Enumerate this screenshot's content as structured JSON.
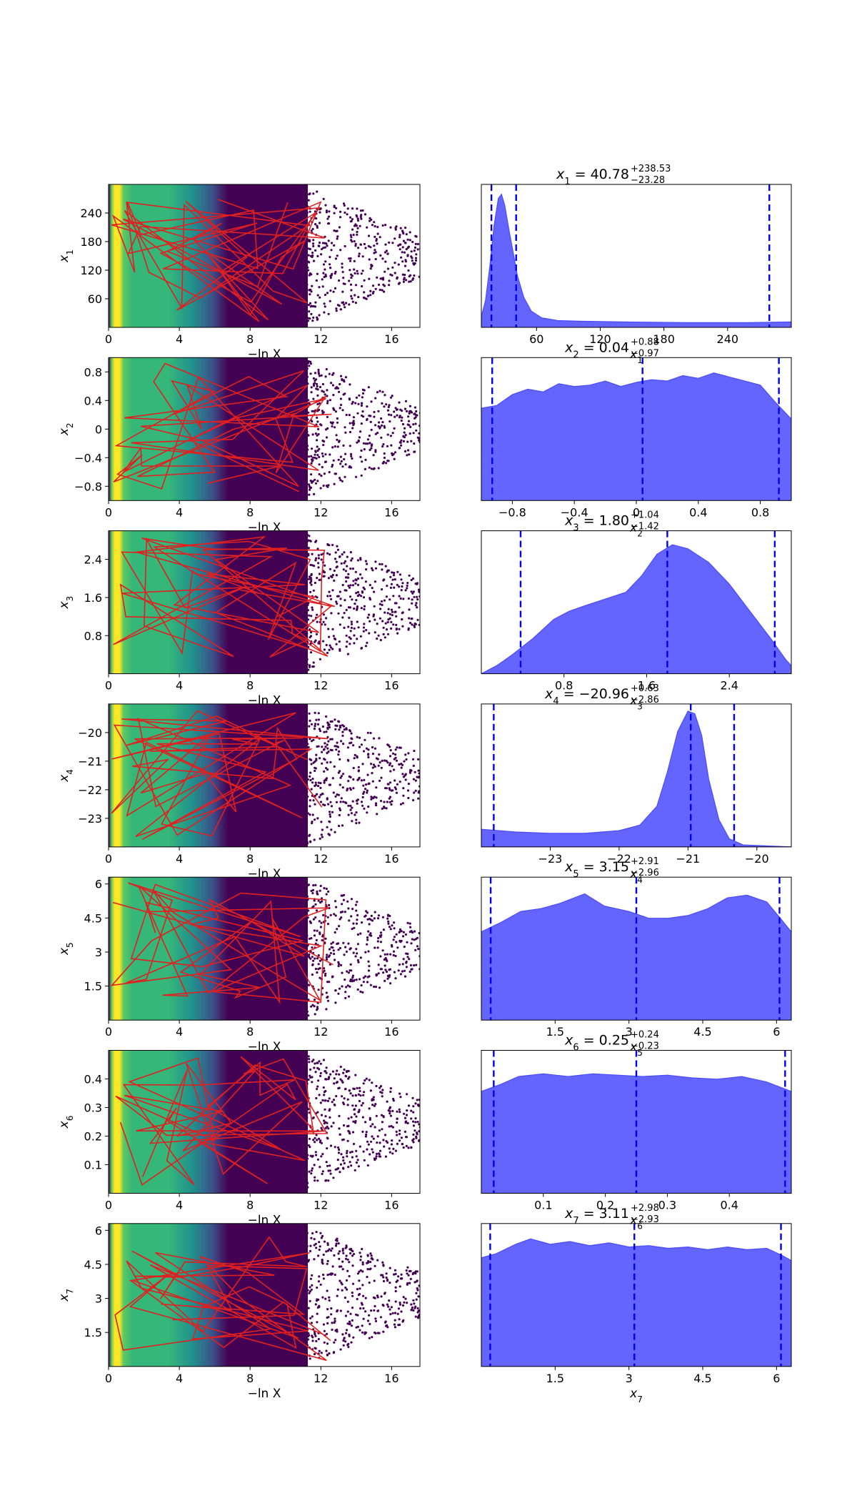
{
  "colors": {
    "histogram_fill": "#6464ff",
    "histogram_edge": "#4b4bff",
    "quantile_line": "#0000ee",
    "trace_line": "#e02020",
    "viridis": [
      "#440154",
      "#3b528b",
      "#21918c",
      "#35b779",
      "#5ec962",
      "#fde725"
    ]
  },
  "chart_data": {
    "type": "scatter",
    "layout": "7 rows x 2 columns",
    "trace_column": {
      "xlabel": "−ln X",
      "x_ticks": [
        "0",
        "4",
        "8",
        "12",
        "16"
      ],
      "xlim": [
        0,
        17.6
      ]
    },
    "rows": [
      {
        "param": "x",
        "index": "1",
        "ylim": [
          0,
          300
        ],
        "y_ticks": [
          60,
          120,
          180,
          240
        ],
        "title": {
          "lhs": "x",
          "sub": "1",
          "median": " = 40.78",
          "upper": "+238.53",
          "lower": "−23.28"
        },
        "hist_ticks": [
          60,
          120,
          180,
          240
        ],
        "hist_xlim": [
          8,
          300
        ],
        "quantiles": [
          17.5,
          40.78,
          279.31
        ],
        "density": [
          [
            8,
            0.08
          ],
          [
            12,
            0.2
          ],
          [
            16,
            0.45
          ],
          [
            20,
            0.75
          ],
          [
            24,
            0.95
          ],
          [
            27,
            0.98
          ],
          [
            30,
            0.9
          ],
          [
            34,
            0.72
          ],
          [
            38,
            0.55
          ],
          [
            42,
            0.38
          ],
          [
            48,
            0.22
          ],
          [
            55,
            0.12
          ],
          [
            65,
            0.07
          ],
          [
            80,
            0.05
          ],
          [
            100,
            0.045
          ],
          [
            140,
            0.04
          ],
          [
            200,
            0.035
          ],
          [
            260,
            0.035
          ],
          [
            300,
            0.04
          ]
        ]
      },
      {
        "param": "x",
        "index": "2",
        "ylim": [
          -1,
          1
        ],
        "y_ticks": [
          -0.8,
          -0.4,
          0.0,
          0.4,
          0.8
        ],
        "title": {
          "lhs": "x",
          "sub": "2",
          "median": " = 0.04",
          "upper": "+0.88",
          "lower": "−0.97"
        },
        "hist_ticks": [
          -0.8,
          -0.4,
          0.0,
          0.4,
          0.8
        ],
        "hist_xlim": [
          -1,
          1
        ],
        "quantiles": [
          -0.93,
          0.04,
          0.92
        ],
        "density": [
          [
            -1,
            0.68
          ],
          [
            -0.9,
            0.7
          ],
          [
            -0.8,
            0.78
          ],
          [
            -0.7,
            0.82
          ],
          [
            -0.6,
            0.8
          ],
          [
            -0.5,
            0.86
          ],
          [
            -0.4,
            0.84
          ],
          [
            -0.3,
            0.85
          ],
          [
            -0.2,
            0.88
          ],
          [
            -0.1,
            0.84
          ],
          [
            0.0,
            0.87
          ],
          [
            0.1,
            0.89
          ],
          [
            0.2,
            0.88
          ],
          [
            0.3,
            0.92
          ],
          [
            0.4,
            0.9
          ],
          [
            0.5,
            0.94
          ],
          [
            0.6,
            0.91
          ],
          [
            0.7,
            0.88
          ],
          [
            0.8,
            0.85
          ],
          [
            0.9,
            0.72
          ],
          [
            1.0,
            0.6
          ]
        ]
      },
      {
        "param": "x",
        "index": "3",
        "ylim": [
          0,
          3
        ],
        "y_ticks": [
          0.8,
          1.6,
          2.4
        ],
        "title": {
          "lhs": "x",
          "sub": "3",
          "median": " = 1.80",
          "upper": "+1.04",
          "lower": "−1.42"
        },
        "hist_ticks": [
          0.8,
          1.6,
          2.4
        ],
        "hist_xlim": [
          0,
          3
        ],
        "quantiles": [
          0.38,
          1.8,
          2.84
        ],
        "density": [
          [
            0,
            0.0
          ],
          [
            0.15,
            0.06
          ],
          [
            0.3,
            0.14
          ],
          [
            0.5,
            0.26
          ],
          [
            0.7,
            0.4
          ],
          [
            0.85,
            0.46
          ],
          [
            1.0,
            0.5
          ],
          [
            1.2,
            0.55
          ],
          [
            1.4,
            0.6
          ],
          [
            1.55,
            0.72
          ],
          [
            1.7,
            0.88
          ],
          [
            1.85,
            0.95
          ],
          [
            2.0,
            0.92
          ],
          [
            2.2,
            0.82
          ],
          [
            2.4,
            0.66
          ],
          [
            2.6,
            0.46
          ],
          [
            2.8,
            0.26
          ],
          [
            2.95,
            0.1
          ],
          [
            3.0,
            0.06
          ]
        ]
      },
      {
        "param": "x",
        "index": "4",
        "ylim": [
          -24,
          -19
        ],
        "y_ticks": [
          -23,
          -22,
          -21,
          -20
        ],
        "title": {
          "lhs": "x",
          "sub": "4",
          "median": " = −20.96",
          "upper": "+0.63",
          "lower": "−2.86"
        },
        "hist_ticks": [
          -23,
          -22,
          -21,
          -20
        ],
        "hist_xlim": [
          -24,
          -19.5
        ],
        "quantiles": [
          -23.82,
          -20.96,
          -20.33
        ],
        "density": [
          [
            -24,
            0.13
          ],
          [
            -23.5,
            0.11
          ],
          [
            -23,
            0.1
          ],
          [
            -22.5,
            0.1
          ],
          [
            -22,
            0.12
          ],
          [
            -21.7,
            0.16
          ],
          [
            -21.45,
            0.3
          ],
          [
            -21.3,
            0.55
          ],
          [
            -21.15,
            0.85
          ],
          [
            -21.0,
            1.0
          ],
          [
            -20.9,
            0.98
          ],
          [
            -20.8,
            0.82
          ],
          [
            -20.7,
            0.5
          ],
          [
            -20.55,
            0.2
          ],
          [
            -20.4,
            0.06
          ],
          [
            -20.2,
            0.015
          ],
          [
            -19.5,
            0.0
          ]
        ]
      },
      {
        "param": "x",
        "index": "5",
        "ylim": [
          0,
          6.3
        ],
        "y_ticks": [
          1.5,
          3.0,
          4.5,
          6.0
        ],
        "title": {
          "lhs": "x",
          "sub": "5",
          "median": " = 3.15",
          "upper": "+2.91",
          "lower": "−2.96"
        },
        "hist_ticks": [
          1.5,
          3.0,
          4.5,
          6.0
        ],
        "hist_xlim": [
          0,
          6.3
        ],
        "quantiles": [
          0.19,
          3.15,
          6.06
        ],
        "density": [
          [
            0,
            0.65
          ],
          [
            0.4,
            0.72
          ],
          [
            0.8,
            0.8
          ],
          [
            1.2,
            0.82
          ],
          [
            1.6,
            0.86
          ],
          [
            2.1,
            0.93
          ],
          [
            2.5,
            0.84
          ],
          [
            3.0,
            0.8
          ],
          [
            3.4,
            0.75
          ],
          [
            3.8,
            0.75
          ],
          [
            4.2,
            0.77
          ],
          [
            4.6,
            0.82
          ],
          [
            5.0,
            0.9
          ],
          [
            5.4,
            0.92
          ],
          [
            5.8,
            0.87
          ],
          [
            6.1,
            0.74
          ],
          [
            6.3,
            0.65
          ]
        ]
      },
      {
        "param": "x",
        "index": "6",
        "ylim": [
          0,
          0.5
        ],
        "y_ticks": [
          0.1,
          0.2,
          0.3,
          0.4
        ],
        "title": {
          "lhs": "x",
          "sub": "6",
          "median": " = 0.25",
          "upper": "+0.24",
          "lower": "−0.23"
        },
        "hist_ticks": [
          0.1,
          0.2,
          0.3,
          0.4
        ],
        "hist_xlim": [
          0,
          0.5
        ],
        "quantiles": [
          0.02,
          0.25,
          0.49
        ],
        "density": [
          [
            0,
            0.75
          ],
          [
            0.03,
            0.8
          ],
          [
            0.06,
            0.86
          ],
          [
            0.1,
            0.88
          ],
          [
            0.14,
            0.86
          ],
          [
            0.18,
            0.88
          ],
          [
            0.22,
            0.87
          ],
          [
            0.26,
            0.86
          ],
          [
            0.3,
            0.87
          ],
          [
            0.34,
            0.85
          ],
          [
            0.38,
            0.84
          ],
          [
            0.42,
            0.86
          ],
          [
            0.46,
            0.82
          ],
          [
            0.5,
            0.75
          ]
        ]
      },
      {
        "param": "x",
        "index": "7",
        "ylim": [
          0,
          6.3
        ],
        "y_ticks": [
          1.5,
          3.0,
          4.5,
          6.0
        ],
        "title": {
          "lhs": "x",
          "sub": "7",
          "median": " = 3.11",
          "upper": "+2.98",
          "lower": "−2.93"
        },
        "hist_ticks": [
          1.5,
          3.0,
          4.5,
          6.0
        ],
        "hist_xlim": [
          0,
          6.3
        ],
        "quantiles": [
          0.18,
          3.11,
          6.09
        ],
        "density": [
          [
            0,
            0.8
          ],
          [
            0.3,
            0.83
          ],
          [
            0.7,
            0.9
          ],
          [
            1.0,
            0.94
          ],
          [
            1.4,
            0.9
          ],
          [
            1.8,
            0.92
          ],
          [
            2.2,
            0.89
          ],
          [
            2.6,
            0.91
          ],
          [
            3.0,
            0.88
          ],
          [
            3.4,
            0.89
          ],
          [
            3.8,
            0.87
          ],
          [
            4.2,
            0.88
          ],
          [
            4.6,
            0.86
          ],
          [
            5.0,
            0.88
          ],
          [
            5.4,
            0.86
          ],
          [
            5.8,
            0.87
          ],
          [
            6.1,
            0.82
          ],
          [
            6.3,
            0.78
          ]
        ]
      }
    ]
  }
}
